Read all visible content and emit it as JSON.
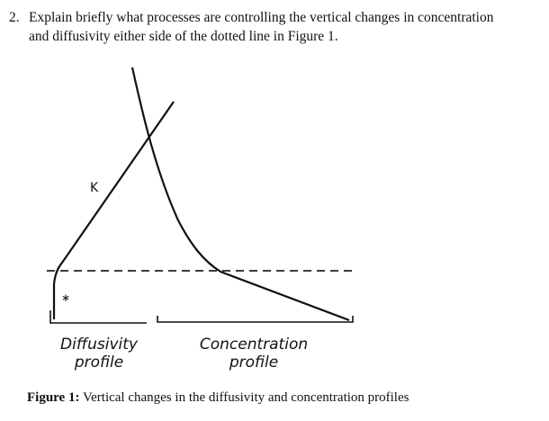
{
  "question": {
    "number": "2.",
    "line1": "Explain briefly what processes are controlling the vertical changes in concentration",
    "line2": "and diffusivity either side of the dotted line in Figure 1."
  },
  "figure": {
    "k_label": "K",
    "mark_label": "∗",
    "diffusivity_label_line1": "Diffusivity",
    "diffusivity_label_line2": "profile",
    "concentration_label_line1": "Concentration",
    "concentration_label_line2": "profile"
  },
  "caption": {
    "prefix": "Figure 1:",
    "text": " Vertical changes in the diffusivity and concentration profiles"
  }
}
